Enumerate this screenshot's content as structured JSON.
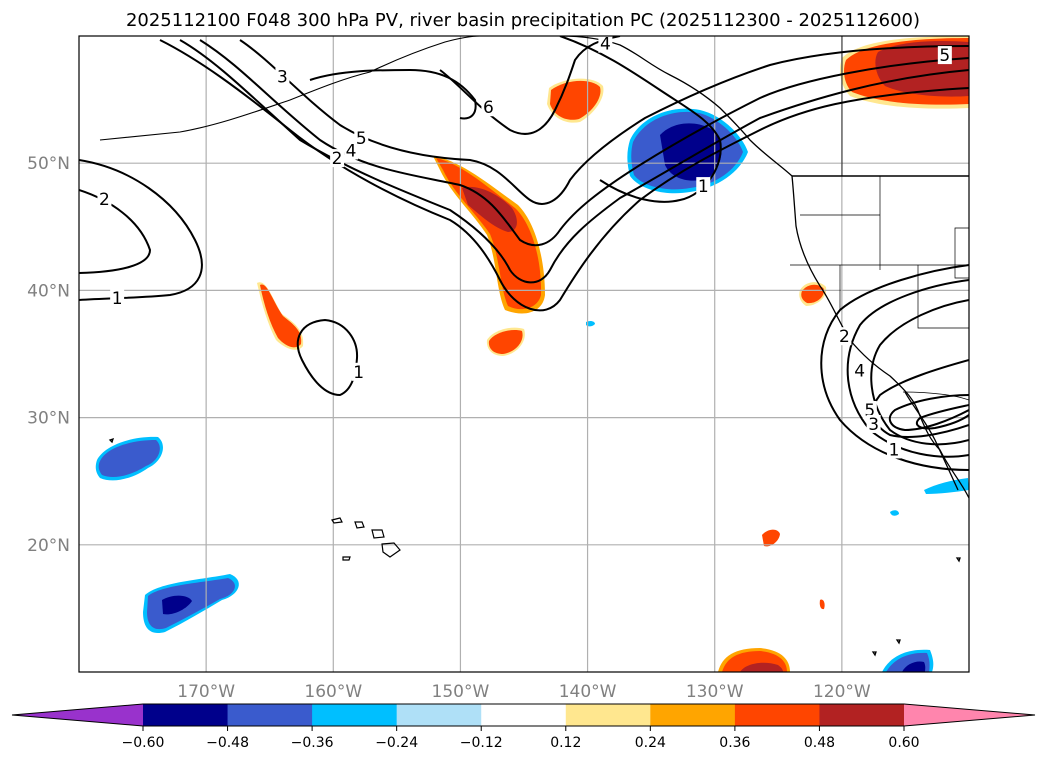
{
  "chart_data": {
    "type": "map",
    "title": "2025112100 F048 300 hPa PV, river basin precipitation PC (2025112300 - 2025112600)",
    "lon_range": [
      -180,
      -110
    ],
    "lat_range": [
      10,
      60
    ],
    "lon_ticks": [
      -170,
      -160,
      -150,
      -140,
      -130,
      -120
    ],
    "lon_tick_labels": [
      "170°W",
      "160°W",
      "150°W",
      "140°W",
      "130°W",
      "120°W"
    ],
    "lat_ticks": [
      20,
      30,
      40,
      50
    ],
    "lat_tick_labels": [
      "20°N",
      "30°N",
      "40°N",
      "50°N"
    ],
    "pv_contour_labels": [
      {
        "text": "1",
        "lon": -177,
        "lat": 39.4
      },
      {
        "text": "2",
        "lon": -178,
        "lat": 47.2
      },
      {
        "text": "1",
        "lon": -158,
        "lat": 33.6
      },
      {
        "text": "3",
        "lon": -164,
        "lat": 56.8
      },
      {
        "text": "2",
        "lon": -159.7,
        "lat": 50.4
      },
      {
        "text": "4",
        "lon": -158.6,
        "lat": 51.0
      },
      {
        "text": "5",
        "lon": -157.8,
        "lat": 52.0
      },
      {
        "text": "6",
        "lon": -147.8,
        "lat": 54.4
      },
      {
        "text": "4",
        "lon": -138.6,
        "lat": 59.4
      },
      {
        "text": "1",
        "lon": -130.9,
        "lat": 48.2
      },
      {
        "text": "2",
        "lon": -119.8,
        "lat": 36.4
      },
      {
        "text": "4",
        "lon": -118.6,
        "lat": 33.7
      },
      {
        "text": "5",
        "lon": -117.8,
        "lat": 30.6
      },
      {
        "text": "3",
        "lon": -117.5,
        "lat": 29.5
      },
      {
        "text": "1",
        "lon": -115.9,
        "lat": 27.5
      },
      {
        "text": "5",
        "lon": -111.9,
        "lat": 58.5
      }
    ],
    "precipitation_pc_patches": [
      {
        "name": "gulf-of-alaska-positive",
        "sign": "positive",
        "peak": 0.55
      },
      {
        "name": "central-pacific-positive",
        "sign": "positive",
        "peak": 0.45
      },
      {
        "name": "northwest-positive",
        "sign": "positive",
        "peak": 0.42
      },
      {
        "name": "subtropical-positive",
        "sign": "positive",
        "peak": 0.4
      },
      {
        "name": "alaska-positive",
        "sign": "positive",
        "peak": 0.4
      },
      {
        "name": "canada-positive",
        "sign": "positive",
        "peak": 0.55
      },
      {
        "name": "pacific-northwest-negative",
        "sign": "negative",
        "peak": -0.58
      },
      {
        "name": "hawaii-region-negative",
        "sign": "negative",
        "peak": -0.45
      },
      {
        "name": "tropical-negative",
        "sign": "negative",
        "peak": -0.55
      }
    ],
    "colorbar": {
      "levels": [
        -0.6,
        -0.48,
        -0.36,
        -0.24,
        -0.12,
        0.12,
        0.24,
        0.36,
        0.48,
        0.6
      ],
      "tick_labels": [
        "−0.60",
        "−0.48",
        "−0.36",
        "−0.24",
        "−0.12",
        "0.12",
        "0.24",
        "0.36",
        "0.48",
        "0.60"
      ],
      "colors": [
        "#9932cc",
        "#00008b",
        "#3a5bcd",
        "#00bfff",
        "#afe0f7",
        "#ffffff",
        "#ffe78f",
        "#ffa500",
        "#ff4500",
        "#b22222",
        "#ff85ad"
      ],
      "extend": "both"
    }
  }
}
